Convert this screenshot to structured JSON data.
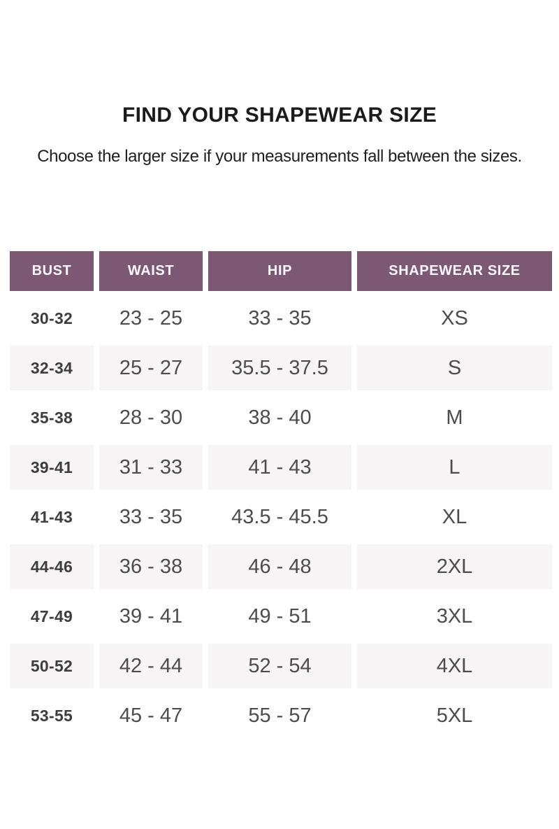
{
  "page": {
    "title": "FIND YOUR SHAPEWEAR SIZE",
    "subtitle": "Choose the larger size if your measurements fall between the sizes."
  },
  "table": {
    "headers": [
      "BUST",
      "WAIST",
      "HIP",
      "SHAPEWEAR SIZE"
    ],
    "rows": [
      {
        "bust": "30-32",
        "waist": "23 - 25",
        "hip": "33 - 35",
        "size": "XS"
      },
      {
        "bust": "32-34",
        "waist": "25 - 27",
        "hip": "35.5 - 37.5",
        "size": "S"
      },
      {
        "bust": "35-38",
        "waist": "28 - 30",
        "hip": "38 - 40",
        "size": "M"
      },
      {
        "bust": "39-41",
        "waist": "31 - 33",
        "hip": "41 - 43",
        "size": "L"
      },
      {
        "bust": "41-43",
        "waist": "33 - 35",
        "hip": "43.5 - 45.5",
        "size": "XL"
      },
      {
        "bust": "44-46",
        "waist": "36 - 38",
        "hip": "46 - 48",
        "size": "2XL"
      },
      {
        "bust": "47-49",
        "waist": "39 - 41",
        "hip": "49 - 51",
        "size": "3XL"
      },
      {
        "bust": "50-52",
        "waist": "42 - 44",
        "hip": "52 - 54",
        "size": "4XL"
      },
      {
        "bust": "53-55",
        "waist": "45 - 47",
        "hip": "55 - 57",
        "size": "5XL"
      }
    ]
  },
  "colors": {
    "header_bg": "#7d5872",
    "header_text": "#fcf9fb",
    "row_alt_bg": "#f6f4f5",
    "body_text": "#4c4c4c",
    "bust_text": "#3d3d3d",
    "title_text": "#1b1b1b"
  }
}
